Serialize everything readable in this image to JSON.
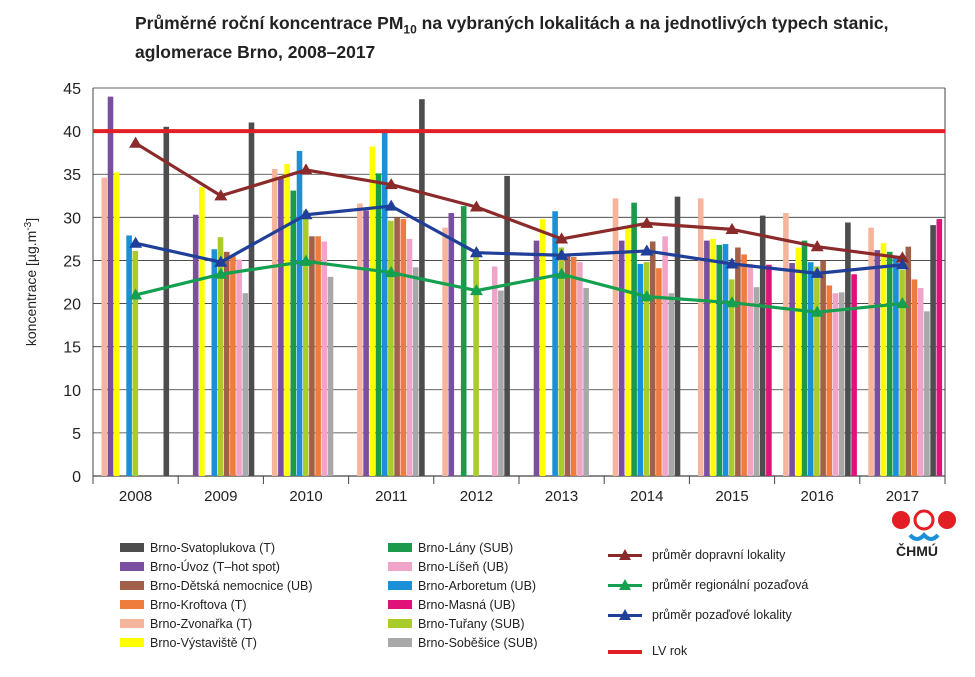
{
  "title_main": "Průměrné roční koncentrace PM",
  "title_sub": "10",
  "title_rest": " na vybraných lokalitách a na jednotlivých typech stanic, aglomerace Brno, 2008–2017",
  "logo_text": "ČHMÚ",
  "chart_data": {
    "type": "bar",
    "ylabel": "koncentrace [µg.m",
    "ylabel_sup": "-3",
    "ylabel_close": "]",
    "ylim": [
      0,
      45
    ],
    "yticks": [
      0,
      5,
      10,
      15,
      20,
      25,
      30,
      35,
      40,
      45
    ],
    "grid": true,
    "categories": [
      "2008",
      "2009",
      "2010",
      "2011",
      "2012",
      "2013",
      "2014",
      "2015",
      "2016",
      "2017"
    ],
    "series": [
      {
        "name": "Brno-Zvonařka (T)",
        "color": "#f4b59c",
        "values": [
          34.6,
          null,
          35.6,
          31.6,
          28.8,
          null,
          32.2,
          32.2,
          30.5,
          28.8
        ]
      },
      {
        "name": "Brno-Úvoz (T–hot spot)",
        "color": "#7b4fa0",
        "values": [
          44.0,
          30.3,
          34.5,
          30.8,
          30.5,
          27.3,
          27.3,
          27.3,
          24.7,
          26.2
        ]
      },
      {
        "name": "Brno-Výstaviště (T)",
        "color": "#ffff00",
        "values": [
          35.2,
          33.5,
          36.2,
          38.2,
          null,
          29.8,
          29.0,
          27.5,
          26.5,
          27.0
        ]
      },
      {
        "name": "Brno-Lány (SUB)",
        "color": "#1a9a4a",
        "values": [
          null,
          null,
          33.1,
          35.1,
          31.3,
          null,
          31.7,
          26.8,
          27.3,
          26.0
        ]
      },
      {
        "name": "Brno-Arboretum (UB)",
        "color": "#1b8fd8",
        "values": [
          27.9,
          26.3,
          37.7,
          40.0,
          null,
          30.7,
          24.6,
          26.9,
          24.8,
          25.5
        ]
      },
      {
        "name": "Brno-Tuřany (SUB)",
        "color": "#a9cc2a",
        "values": [
          26.1,
          27.7,
          30.8,
          29.6,
          26.3,
          26.5,
          24.8,
          22.8,
          24.3,
          23.9
        ]
      },
      {
        "name": "Brno-Dětská nemocnice (UB)",
        "color": "#a0604a",
        "values": [
          null,
          26.0,
          27.8,
          30.0,
          null,
          25.6,
          27.2,
          26.5,
          25.0,
          26.6
        ]
      },
      {
        "name": "Brno-Kroftova (T)",
        "color": "#ef7b3d",
        "values": [
          null,
          25.6,
          27.8,
          29.8,
          null,
          25.4,
          24.1,
          25.7,
          22.1,
          22.8
        ]
      },
      {
        "name": "Brno-Líšeň (UB)",
        "color": "#f0a5c8",
        "values": [
          null,
          25.1,
          27.2,
          27.5,
          24.3,
          24.8,
          27.8,
          24.6,
          21.2,
          21.8
        ]
      },
      {
        "name": "Brno-Soběšice (SUB)",
        "color": "#a8a8a8",
        "values": [
          null,
          21.2,
          23.1,
          24.2,
          21.5,
          21.8,
          21.2,
          21.9,
          21.3,
          19.1
        ]
      },
      {
        "name": "Brno-Svatoplukova (T)",
        "color": "#4d4d4d",
        "values": [
          40.5,
          41.0,
          null,
          43.7,
          34.8,
          null,
          32.4,
          30.2,
          29.4,
          29.1
        ]
      },
      {
        "name": "Brno-Masná (UB)",
        "color": "#e0127a",
        "values": [
          null,
          null,
          null,
          null,
          null,
          null,
          null,
          24.5,
          23.4,
          29.8
        ]
      }
    ],
    "lines": [
      {
        "name": "průměr dopravní lokality",
        "color": "#8b2a2a",
        "values": [
          38.6,
          32.5,
          35.5,
          33.8,
          31.2,
          27.5,
          29.3,
          28.6,
          26.6,
          25.3
        ]
      },
      {
        "name": "průměr regionální pozaďová",
        "color": "#14a050",
        "values": [
          21.0,
          23.4,
          24.9,
          23.6,
          21.5,
          23.4,
          20.8,
          20.1,
          19.0,
          20.0
        ]
      },
      {
        "name": "průměr pozaďové lokality",
        "color": "#1f3f99",
        "values": [
          27.0,
          24.8,
          30.3,
          31.3,
          25.9,
          25.6,
          26.1,
          24.6,
          23.5,
          24.5
        ]
      }
    ],
    "limit": {
      "name": "LV rok",
      "color": "#e31e24",
      "value": 40
    },
    "legend": {
      "col1": [
        "Brno-Svatoplukova (T)",
        "Brno-Úvoz (T–hot spot)",
        "Brno-Dětská nemocnice (UB)",
        "Brno-Kroftova (T)",
        "Brno-Zvonařka (T)",
        "Brno-Výstaviště (T)"
      ],
      "col2": [
        "Brno-Lány (SUB)",
        "Brno-Líšeň (UB)",
        "Brno-Arboretum (UB)",
        "Brno-Masná (UB)",
        "Brno-Tuřany (SUB)",
        "Brno-Soběšice (SUB)"
      ],
      "col1_colors": [
        "#4d4d4d",
        "#7b4fa0",
        "#a0604a",
        "#ef7b3d",
        "#f4b59c",
        "#ffff00"
      ],
      "col2_colors": [
        "#1a9a4a",
        "#f0a5c8",
        "#1b8fd8",
        "#e0127a",
        "#a9cc2a",
        "#a8a8a8"
      ]
    }
  }
}
